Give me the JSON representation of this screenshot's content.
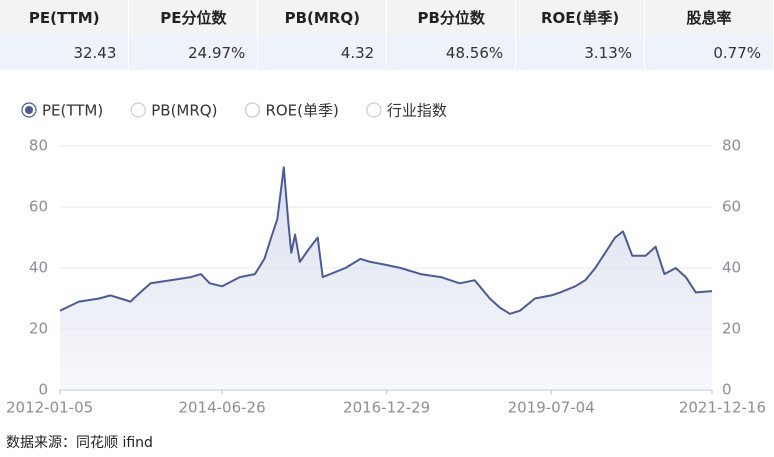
{
  "table": {
    "header": [
      "PE(TTM)",
      "PE分位数",
      "PB(MRQ)",
      "PB分位数",
      "ROE(单季)",
      "股息率"
    ],
    "rows": [
      [
        "32.43",
        "24.97%",
        "4.32",
        "48.56%",
        "3.13%",
        "0.77%"
      ]
    ]
  },
  "chart_data": {
    "type": "line",
    "options": [
      "PE(TTM)",
      "PB(MRQ)",
      "ROE(单季)",
      "行业指数"
    ],
    "selected_option": 0,
    "x": [
      "2012-01-05",
      "2012-04-20",
      "2012-08-10",
      "2012-10-12",
      "2012-12-07",
      "2013-01-31",
      "2013-03-28",
      "2013-05-24",
      "2013-09-13",
      "2014-01-03",
      "2014-02-28",
      "2014-04-18",
      "2014-06-26",
      "2014-10-03",
      "2014-12-26",
      "2015-02-17",
      "2015-03-27",
      "2015-04-30",
      "2015-06-05",
      "2015-06-30",
      "2015-07-17",
      "2015-08-07",
      "2015-09-02",
      "2015-10-20",
      "2015-12-11",
      "2016-01-08",
      "2016-02-19",
      "2016-05-13",
      "2016-08-05",
      "2016-09-30",
      "2016-12-29",
      "2017-03-17",
      "2017-07-07",
      "2017-10-27",
      "2018-02-09",
      "2018-05-04",
      "2018-07-27",
      "2018-09-21",
      "2018-11-16",
      "2019-01-11",
      "2019-04-04",
      "2019-07-04",
      "2019-08-23",
      "2019-11-15",
      "2020-01-10",
      "2020-03-06",
      "2020-04-30",
      "2020-06-24",
      "2020-08-07",
      "2020-09-28",
      "2020-12-11",
      "2021-02-05",
      "2021-03-26",
      "2021-05-28",
      "2021-07-23",
      "2021-09-17",
      "2021-12-16"
    ],
    "series": [
      {
        "name": "PE(TTM)",
        "color": "#4b5b96",
        "values": [
          26,
          29,
          30,
          31,
          30,
          29,
          32,
          35,
          36,
          37,
          38,
          35,
          34,
          37,
          38,
          43,
          50,
          56,
          73,
          55,
          45,
          51,
          42,
          46,
          50,
          37,
          38,
          40,
          43,
          42,
          41,
          40,
          38,
          37,
          35,
          36,
          30,
          27,
          25,
          26,
          30,
          31,
          32,
          34,
          36,
          40,
          45,
          50,
          52,
          44,
          44,
          47,
          38,
          40,
          37,
          32,
          32.43
        ]
      }
    ],
    "xlim": [
      "2012-01-05",
      "2021-12-16"
    ],
    "xticks": [
      "2012-01-05",
      "2014-06-26",
      "2016-12-29",
      "2019-07-04",
      "2021-12-16"
    ],
    "ylim": [
      0,
      80
    ],
    "yticks": [
      0,
      20,
      40,
      60,
      80
    ],
    "y2lim": [
      0,
      80
    ],
    "y2ticks": [
      0,
      20,
      40,
      60,
      80
    ],
    "grid": true
  },
  "source": "数据来源：同花顺 ifind"
}
